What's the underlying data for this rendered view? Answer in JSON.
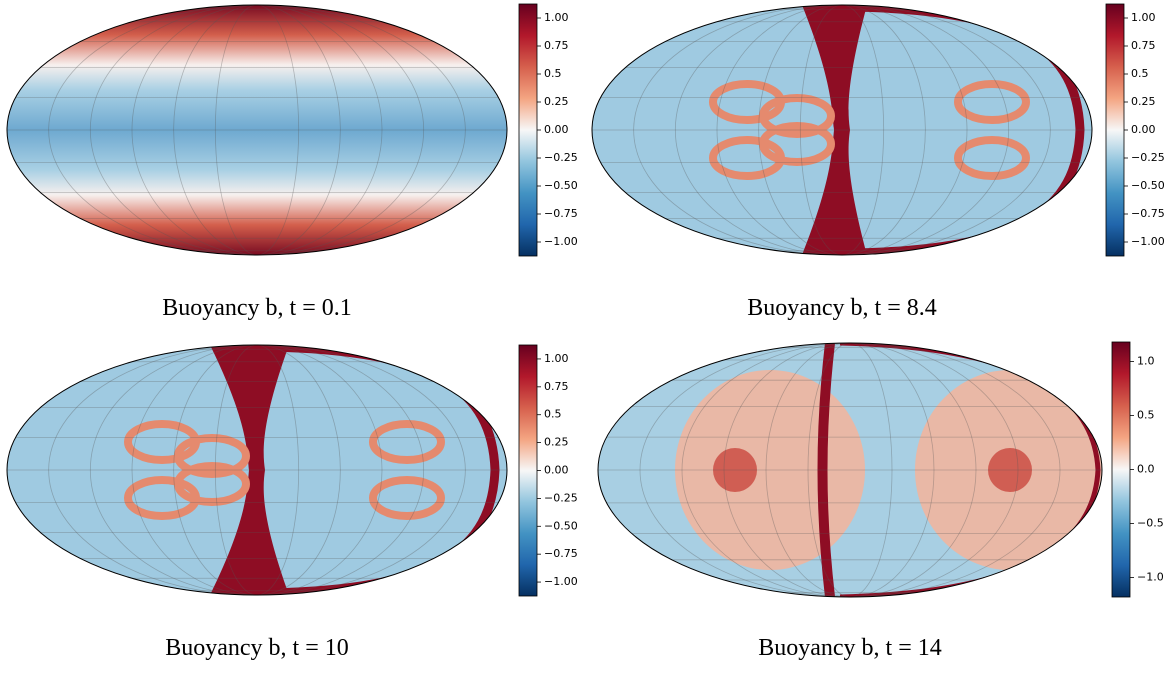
{
  "chart_data": [
    {
      "type": "heatmap",
      "title": "Buoyancy b, t = 0.1",
      "colors": [
        "#053061",
        "#2166ac",
        "#4393c3",
        "#92c5de",
        "#f7f7f7",
        "#f4a582",
        "#d6604d",
        "#b2182b",
        "#67001f"
      ],
      "clim": [
        -1.125,
        1.125
      ],
      "cticks": [
        {
          "value": -1,
          "label": "−1.00"
        },
        {
          "value": -0.75,
          "label": "−0.75"
        },
        {
          "value": -0.5,
          "label": "−0.50"
        },
        {
          "value": -0.25,
          "label": "−0.25"
        },
        {
          "value": 0,
          "label": "0.00"
        },
        0.25,
        0.5,
        0.75,
        {
          "value": 1,
          "label": "1.00"
        }
      ]
    },
    {
      "type": "heatmap",
      "title": "Buoyancy b, t = 8.4",
      "colors": [
        "#053061",
        "#2166ac",
        "#4393c3",
        "#92c5de",
        "#f7f7f7",
        "#f4a582",
        "#d6604d",
        "#b2182b",
        "#67001f"
      ],
      "clim": [
        -1.125,
        1.125
      ],
      "cticks": [
        {
          "value": -1,
          "label": "−1.00"
        },
        {
          "value": -0.75,
          "label": "−0.75"
        },
        {
          "value": -0.5,
          "label": "−0.50"
        },
        {
          "value": -0.25,
          "label": "−0.25"
        },
        {
          "value": 0,
          "label": "0.00"
        },
        0.25,
        0.5,
        0.75,
        {
          "value": 1,
          "label": "1.00"
        }
      ]
    },
    {
      "type": "heatmap",
      "title": "Buoyancy b, t = 10",
      "colors": [
        "#053061",
        "#2166ac",
        "#4393c3",
        "#92c5de",
        "#f7f7f7",
        "#f4a582",
        "#d6604d",
        "#b2182b",
        "#67001f"
      ],
      "clim": [
        -1.125,
        1.125
      ],
      "cticks": [
        {
          "value": -1,
          "label": "−1.00"
        },
        {
          "value": -0.75,
          "label": "−0.75"
        },
        {
          "value": -0.5,
          "label": "−0.50"
        },
        {
          "value": -0.25,
          "label": "−0.25"
        },
        {
          "value": 0,
          "label": "0.00"
        },
        0.25,
        0.5,
        0.75,
        {
          "value": 1,
          "label": "1.00"
        }
      ]
    },
    {
      "type": "heatmap",
      "title": "Buoyancy b, t = 14",
      "colors": [
        "#053061",
        "#2166ac",
        "#4393c3",
        "#92c5de",
        "#f7f7f7",
        "#f4a582",
        "#d6604d",
        "#b2182b",
        "#67001f"
      ],
      "clim": [
        -1.18,
        1.18
      ],
      "cticks": [
        {
          "value": -1,
          "label": "−1.0"
        },
        {
          "value": -0.5,
          "label": "−0.5"
        },
        {
          "value": 0,
          "label": "0.0"
        },
        0.5,
        {
          "value": 1,
          "label": "1.0"
        }
      ]
    }
  ]
}
